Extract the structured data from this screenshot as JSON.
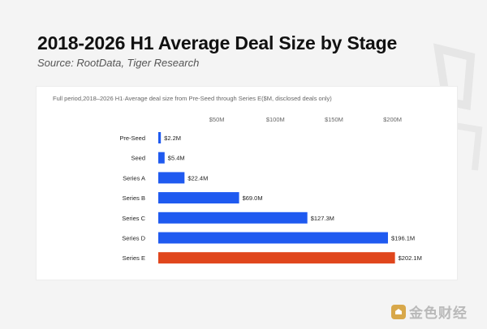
{
  "header": {
    "title": "2018-2026 H1 Average Deal Size by Stage",
    "subtitle": "Source: RootData, Tiger Research"
  },
  "watermark": {
    "text": "金色财经",
    "icon": "jinse-logo-icon"
  },
  "colors": {
    "bar": "#1f5af0",
    "highlight": "#e0461c",
    "background": "#f4f4f4",
    "panel": "#ffffff"
  },
  "chart_data": {
    "type": "bar",
    "orientation": "horizontal",
    "title": "Full period,2018–2026 H1·Average deal size from Pre‑Seed through Series E($M, disclosed deals only)",
    "categories": [
      "Pre-Seed",
      "Seed",
      "Series A",
      "Series B",
      "Series C",
      "Series D",
      "Series E"
    ],
    "values": [
      2.2,
      5.4,
      22.4,
      69.0,
      127.3,
      196.1,
      202.1
    ],
    "data_labels": [
      "$2.2M",
      "$5.4M",
      "$22.4M",
      "$69.0M",
      "$127.3M",
      "$196.1M",
      "$202.1M"
    ],
    "highlight_category": "Series E",
    "xticks": [
      50,
      100,
      150,
      200
    ],
    "xtick_labels": [
      "$50M",
      "$100M",
      "$150M",
      "$200M"
    ],
    "xlim": [
      0,
      200
    ],
    "axis_position": "top",
    "grid": false,
    "legend": false,
    "xlabel": "",
    "ylabel": ""
  }
}
